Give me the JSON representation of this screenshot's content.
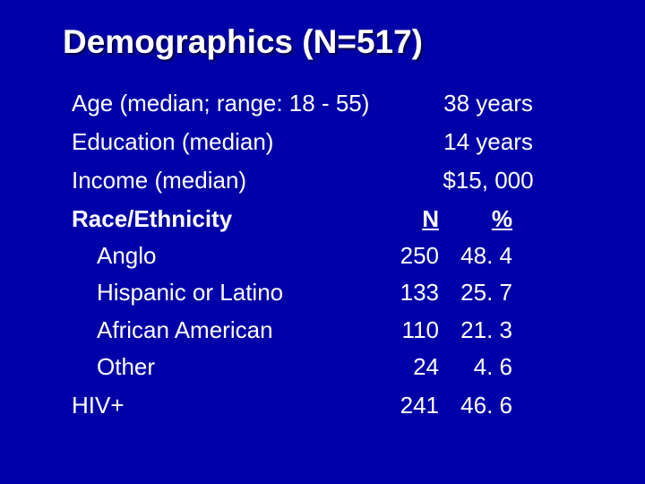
{
  "title": "Demographics (N=517)",
  "rows": {
    "age": {
      "label": "Age (median; range: 18 - 55)",
      "value": "38 years"
    },
    "education": {
      "label": "Education (median)",
      "value": "14 years"
    },
    "income": {
      "label": "Income (median)",
      "value": "$15, 000"
    }
  },
  "race": {
    "heading": "Race/Ethnicity",
    "col_n_header": "N",
    "col_pct_header": "%",
    "items": [
      {
        "label": "Anglo",
        "n": "250",
        "pct": "48. 4"
      },
      {
        "label": "Hispanic or Latino",
        "n": "133",
        "pct": "25. 7"
      },
      {
        "label": "African American",
        "n": "110",
        "pct": "21. 3"
      },
      {
        "label": "Other",
        "n": "24",
        "pct": "4. 6"
      }
    ]
  },
  "hiv": {
    "label": "HIV+",
    "n": "241",
    "pct": "46. 6"
  },
  "colors": {
    "background": "#0000a8",
    "text": "#ffffff"
  },
  "fonts": {
    "title_family": "Verdana",
    "title_size_pt": 28,
    "body_family": "Arial",
    "body_size_pt": 20
  }
}
